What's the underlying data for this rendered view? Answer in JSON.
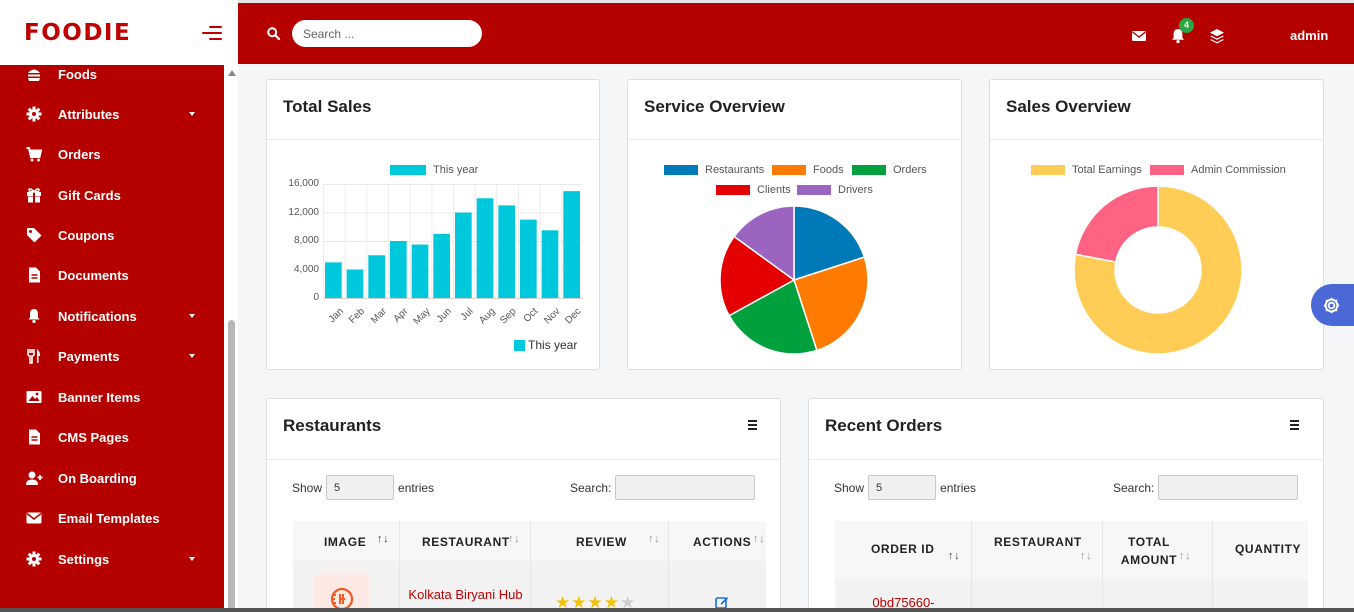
{
  "brand": {
    "name": "FOODIE"
  },
  "sidebar": {
    "items": [
      {
        "label": "Foods",
        "icon": "burger-icon",
        "has_caret": false
      },
      {
        "label": "Attributes",
        "icon": "gear-icon",
        "has_caret": true
      },
      {
        "label": "Orders",
        "icon": "cart-icon",
        "has_caret": false
      },
      {
        "label": "Gift Cards",
        "icon": "gift-icon",
        "has_caret": false
      },
      {
        "label": "Coupons",
        "icon": "tag-icon",
        "has_caret": false
      },
      {
        "label": "Documents",
        "icon": "document-icon",
        "has_caret": false
      },
      {
        "label": "Notifications",
        "icon": "bell-icon",
        "has_caret": true
      },
      {
        "label": "Payments",
        "icon": "cutlery-icon",
        "has_caret": true
      },
      {
        "label": "Banner Items",
        "icon": "image-icon",
        "has_caret": false
      },
      {
        "label": "CMS Pages",
        "icon": "document-icon",
        "has_caret": false
      },
      {
        "label": "On Boarding",
        "icon": "user-plus-icon",
        "has_caret": false
      },
      {
        "label": "Email Templates",
        "icon": "envelope-icon",
        "has_caret": false
      },
      {
        "label": "Settings",
        "icon": "gear-icon",
        "has_caret": true
      }
    ]
  },
  "topbar": {
    "search_placeholder": "Search ...",
    "notification_count": "4",
    "user": "admin"
  },
  "colors": {
    "brand_red": "#b50000",
    "bar_cyan": "#00c8dc",
    "restaurants": "#0079b8",
    "foods": "#ff7a00",
    "orders": "#00a03c",
    "clients": "#e40000",
    "drivers": "#9b64c0",
    "total_earnings": "#ffcd56",
    "admin_commission": "#ff6384"
  },
  "cards": {
    "total_sales": {
      "title": "Total Sales"
    },
    "service_overview": {
      "title": "Service Overview"
    },
    "sales_overview": {
      "title": "Sales Overview"
    },
    "restaurants": {
      "title": "Restaurants",
      "show_label": "Show",
      "length_value": "5",
      "entries_label": "entries",
      "search_label": "Search:",
      "columns": [
        "IMAGE",
        "RESTAURANT",
        "REVIEW",
        "ACTIONS"
      ],
      "rows": [
        {
          "restaurant": "Kolkata Biryani Hub",
          "rating": 4
        }
      ]
    },
    "recent_orders": {
      "title": "Recent Orders",
      "show_label": "Show",
      "length_value": "5",
      "entries_label": "entries",
      "search_label": "Search:",
      "columns": [
        "ORDER ID",
        "RESTAURANT",
        "TOTAL AMOUNT",
        "QUANTITY"
      ],
      "rows": [
        {
          "order_id": "0bd75660-"
        }
      ]
    }
  },
  "chart_data": [
    {
      "type": "bar",
      "title": "Total Sales",
      "categories": [
        "Jan",
        "Feb",
        "Mar",
        "Apr",
        "May",
        "Jun",
        "Jul",
        "Aug",
        "Sep",
        "Oct",
        "Nov",
        "Dec"
      ],
      "series": [
        {
          "name": "This year",
          "values": [
            5000,
            4000,
            6000,
            8000,
            7500,
            9000,
            12000,
            14000,
            13000,
            11000,
            9500,
            15000
          ]
        }
      ],
      "yticks": [
        "16,000",
        "12,000",
        "8,000",
        "4,000",
        "0"
      ],
      "ylim": [
        0,
        16000
      ],
      "grid": true,
      "legend": "top and bottom-right",
      "legend_label": "This year"
    },
    {
      "type": "pie",
      "title": "Service Overview",
      "labels": [
        "Restaurants",
        "Foods",
        "Orders",
        "Clients",
        "Drivers"
      ],
      "values": [
        20,
        25,
        22,
        18,
        15
      ],
      "legend": "top"
    },
    {
      "type": "pie",
      "title": "Sales Overview",
      "labels": [
        "Total Earnings",
        "Admin Commission"
      ],
      "values": [
        78,
        22
      ],
      "donut": true,
      "legend": "top"
    }
  ]
}
